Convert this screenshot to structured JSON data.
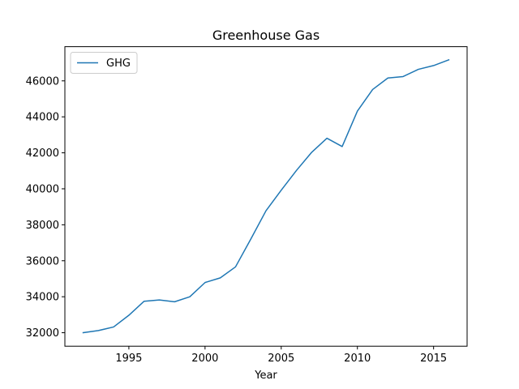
{
  "chart_data": {
    "type": "line",
    "title": "Greenhouse Gas",
    "xlabel": "Year",
    "ylabel": "",
    "xlim": [
      1990.8,
      2017.2
    ],
    "ylim": [
      31250,
      47900
    ],
    "xticks": [
      1995,
      2000,
      2005,
      2010,
      2015
    ],
    "yticks": [
      32000,
      34000,
      36000,
      38000,
      40000,
      42000,
      44000,
      46000
    ],
    "grid": false,
    "legend_position": "top-left",
    "series": [
      {
        "name": "GHG",
        "color": "#1f77b4",
        "x": [
          1992,
          1993,
          1994,
          1995,
          1996,
          1997,
          1998,
          1999,
          2000,
          2001,
          2002,
          2003,
          2004,
          2005,
          2006,
          2007,
          2008,
          2009,
          2010,
          2011,
          2012,
          2013,
          2014,
          2015,
          2016
        ],
        "y": [
          32000,
          32120,
          32320,
          32970,
          33750,
          33820,
          33720,
          34000,
          34790,
          35050,
          35660,
          37200,
          38780,
          39920,
          41020,
          42030,
          42810,
          42350,
          44320,
          45520,
          46160,
          46240,
          46640,
          46850,
          47170
        ]
      }
    ]
  }
}
